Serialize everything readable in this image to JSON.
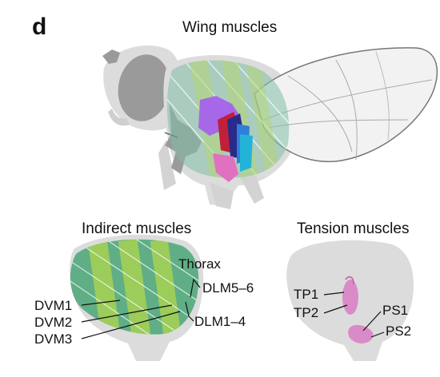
{
  "panel_label": "d",
  "top": {
    "title": "Wing muscles"
  },
  "indirect": {
    "title": "Indirect muscles",
    "labels": {
      "thorax": "Thorax",
      "dvm1": "DVM1",
      "dvm2": "DVM2",
      "dvm3": "DVM3",
      "dlm56": "DLM5–6",
      "dlm14": "DLM1–4"
    }
  },
  "tension": {
    "title": "Tension muscles",
    "labels": {
      "tp1": "TP1",
      "tp2": "TP2",
      "ps1": "PS1",
      "ps2": "PS2"
    }
  },
  "colors": {
    "body_gray": "#dcdcdc",
    "dark_gray": "#9a9a9a",
    "dlm_green": "#5fae86",
    "dvm_green": "#9ccc5a",
    "purple": "#a55cf0",
    "dark_blue": "#2a2a8a",
    "blue": "#2f7fd8",
    "cyan": "#24b3d8",
    "red": "#c0203a",
    "pink": "#e070c0",
    "tension_pink": "#d98bc8"
  }
}
